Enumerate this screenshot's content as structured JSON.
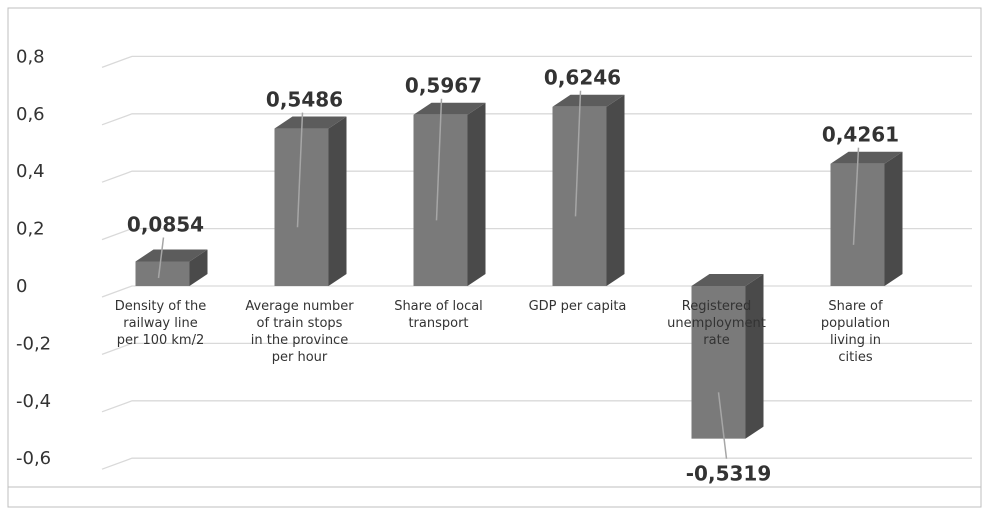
{
  "chart_data": {
    "type": "bar",
    "style": "3d-column",
    "categories": [
      "Density of the railway line per 100 km/2",
      "Average number of train stops in the province per hour",
      "Share of local transport",
      "GDP per capita",
      "Registered unemployment rate",
      "Share of population living in cities"
    ],
    "values": [
      0.0854,
      0.5486,
      0.5967,
      0.6246,
      -0.5319,
      0.4261
    ],
    "data_labels": [
      "0,0854",
      "0,5486",
      "0,5967",
      "0,6246",
      "-0,5319",
      "0,4261"
    ],
    "y_ticks": [
      0.8,
      0.6,
      0.4,
      0.2,
      0,
      -0.2,
      -0.4,
      -0.6
    ],
    "y_tick_labels": [
      "0,8",
      "0,6",
      "0,4",
      "0,2",
      "0",
      "-0,2",
      "-0,4",
      "-0,6"
    ],
    "ylim": [
      -0.6,
      0.8
    ],
    "grid": true,
    "legend": "none",
    "title": "",
    "xlabel": "",
    "ylabel": "",
    "colors": {
      "bar_front": "#7a7a7a",
      "bar_side": "#4a4a4a",
      "bar_top": "#5c5c5c",
      "grid": "#d9d9d9",
      "text": "#333333",
      "frame": "#bfbfbf"
    }
  }
}
